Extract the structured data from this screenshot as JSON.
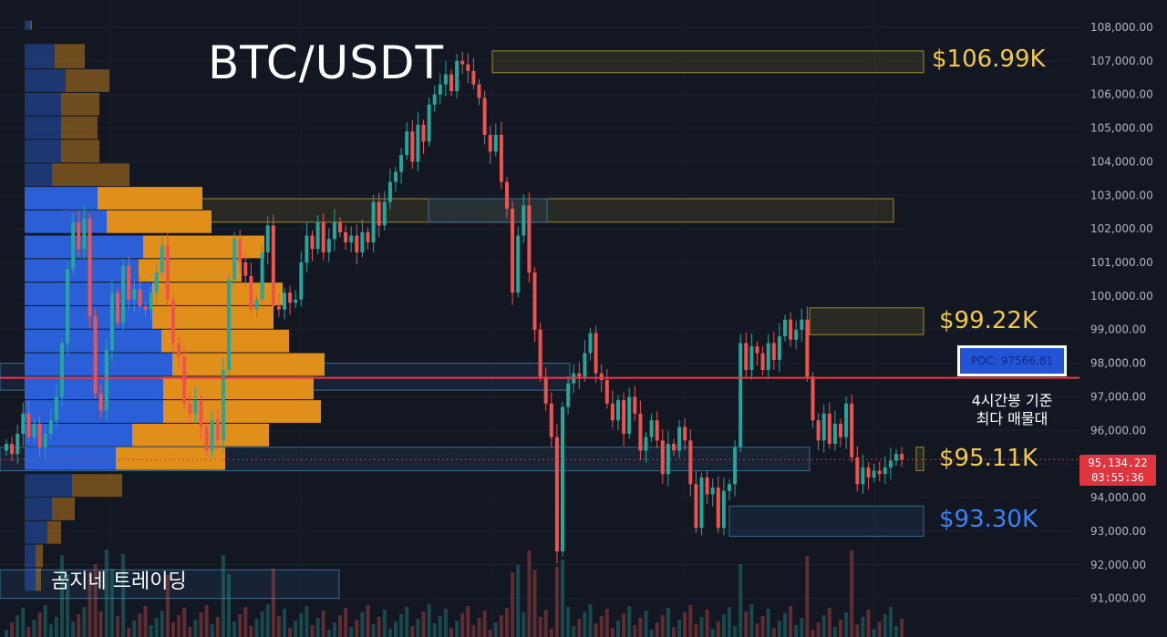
{
  "chart_data": {
    "type": "candlestick",
    "title": "BTC/USDT",
    "watermark": "곰지네 트레이딩",
    "ylim": [
      90000,
      108500
    ],
    "y_ticks": [
      "91,000.00",
      "92,000.00",
      "93,000.00",
      "94,000.00",
      "95,000.00",
      "96,000.00",
      "97,000.00",
      "98,000.00",
      "99,000.00",
      "100,000.00",
      "101,000.00",
      "102,000.00",
      "103,000.00",
      "104,000.00",
      "105,000.00",
      "106,000.00",
      "107,000.00",
      "108,000.00"
    ],
    "y_tick_values": [
      91000,
      92000,
      93000,
      94000,
      95000,
      96000,
      97000,
      98000,
      99000,
      100000,
      101000,
      102000,
      103000,
      104000,
      105000,
      106000,
      107000,
      108000
    ],
    "grid": true,
    "current_price": {
      "value": "95,134.22",
      "countdown": "03:55:36",
      "price": 95134.22
    },
    "poc": {
      "label": "POC: 97566.81",
      "value": 97566.81,
      "note_line1": "4시간봉 기준",
      "note_line2": "최다 매물대"
    },
    "levels": [
      {
        "label": "$106.99K",
        "value": 106990,
        "color": "#f2c94c"
      },
      {
        "label": "$99.22K",
        "value": 99220,
        "color": "#f2c94c"
      },
      {
        "label": "$95.11K",
        "value": 95110,
        "color": "#f2c94c"
      },
      {
        "label": "$93.30K",
        "value": 93300,
        "color": "#3b82f6"
      }
    ],
    "zones": [
      {
        "low": 106650,
        "high": 107300,
        "color": "yellow"
      },
      {
        "low": 102200,
        "high": 102900,
        "color": "yellow"
      },
      {
        "low": 102200,
        "high": 102900,
        "color": "blue"
      },
      {
        "low": 98850,
        "high": 99650,
        "color": "yellow"
      },
      {
        "low": 97200,
        "high": 98000,
        "color": "blue"
      },
      {
        "low": 94800,
        "high": 95500,
        "color": "yellow"
      },
      {
        "low": 94800,
        "high": 95500,
        "color": "blue"
      },
      {
        "low": 92850,
        "high": 93750,
        "color": "blue"
      },
      {
        "low": 91000,
        "high": 91850,
        "color": "blue"
      }
    ],
    "candle_closes": [
      95600,
      95300,
      95900,
      96500,
      95800,
      96200,
      95500,
      95900,
      96300,
      97000,
      98600,
      100800,
      102200,
      101400,
      102300,
      99400,
      97100,
      96600,
      98400,
      100100,
      99200,
      100900,
      99900,
      100200,
      99700,
      99600,
      100100,
      100700,
      101500,
      99900,
      98600,
      98200,
      96800,
      96500,
      96900,
      96100,
      95400,
      96300,
      95700,
      97800,
      100500,
      101700,
      101000,
      100600,
      99600,
      99900,
      101300,
      102100,
      99700,
      99600,
      100100,
      99800,
      99900,
      101000,
      101800,
      101400,
      102200,
      101300,
      101700,
      102200,
      101900,
      101600,
      101800,
      101300,
      101900,
      101600,
      102800,
      102100,
      102800,
      103400,
      103700,
      104200,
      104900,
      104000,
      105100,
      104600,
      105700,
      106000,
      106300,
      106600,
      106100,
      107000,
      106900,
      106700,
      106300,
      105900,
      104800,
      104300,
      104800,
      103400,
      102600,
      100100,
      101800,
      102700,
      100700,
      99000,
      97600,
      96800,
      95800,
      92400,
      96700,
      97400,
      97700,
      97600,
      98300,
      98900,
      97700,
      97500,
      96800,
      96300,
      96900,
      95900,
      97000,
      96500,
      95400,
      95800,
      96300,
      95700,
      94700,
      95600,
      95400,
      96100,
      95700,
      94400,
      93100,
      94600,
      94100,
      94300,
      93100,
      94200,
      94400,
      95500,
      98600,
      97800,
      98500,
      98300,
      97800,
      98600,
      98100,
      98800,
      99300,
      98700,
      99000,
      99300,
      97600,
      96300,
      95700,
      96500,
      95600,
      96200,
      95800,
      96800,
      95200,
      94400,
      94900,
      94600,
      94800,
      94700,
      94900,
      95100,
      95300,
      95134
    ],
    "volume_profile": [
      {
        "price_high": 108200,
        "price_low": 107900,
        "buy": 6,
        "sell": 2
      },
      {
        "price_high": 107500,
        "price_low": 106750,
        "buy": 33,
        "sell": 33
      },
      {
        "price_high": 106750,
        "price_low": 106050,
        "buy": 45,
        "sell": 48
      },
      {
        "price_high": 106050,
        "price_low": 105350,
        "buy": 40,
        "sell": 42
      },
      {
        "price_high": 105350,
        "price_low": 104650,
        "buy": 40,
        "sell": 40
      },
      {
        "price_high": 104650,
        "price_low": 103950,
        "buy": 40,
        "sell": 42
      },
      {
        "price_high": 103950,
        "price_low": 103250,
        "buy": 30,
        "sell": 85
      },
      {
        "price_high": 103250,
        "price_low": 102550,
        "buy": 80,
        "sell": 115
      },
      {
        "price_high": 102550,
        "price_low": 101850,
        "buy": 90,
        "sell": 115
      },
      {
        "price_high": 101800,
        "price_low": 101100,
        "buy": 130,
        "sell": 133
      },
      {
        "price_high": 101100,
        "price_low": 100400,
        "buy": 125,
        "sell": 113
      },
      {
        "price_high": 100400,
        "price_low": 99700,
        "buy": 140,
        "sell": 143
      },
      {
        "price_high": 99700,
        "price_low": 99000,
        "buy": 140,
        "sell": 133
      },
      {
        "price_high": 99000,
        "price_low": 98300,
        "buy": 150,
        "sell": 140
      },
      {
        "price_high": 98300,
        "price_low": 97600,
        "buy": 162,
        "sell": 167
      },
      {
        "price_high": 97600,
        "price_low": 96900,
        "buy": 152,
        "sell": 165
      },
      {
        "price_high": 96900,
        "price_low": 96200,
        "buy": 152,
        "sell": 173
      },
      {
        "price_high": 96200,
        "price_low": 95500,
        "buy": 118,
        "sell": 150
      },
      {
        "price_high": 95500,
        "price_low": 94800,
        "buy": 100,
        "sell": 120
      },
      {
        "price_high": 94700,
        "price_low": 94000,
        "buy": 52,
        "sell": 55
      },
      {
        "price_high": 94000,
        "price_low": 93300,
        "buy": 30,
        "sell": 25
      },
      {
        "price_high": 93300,
        "price_low": 92600,
        "buy": 25,
        "sell": 15
      },
      {
        "price_high": 92600,
        "price_low": 91900,
        "buy": 12,
        "sell": 8
      },
      {
        "price_high": 91900,
        "price_low": 91200,
        "buy": 12,
        "sell": 6
      }
    ],
    "colors": {
      "background": "#131722",
      "up": "#26a69a",
      "down": "#ef5350",
      "profile_buy": "#2a5fd8",
      "profile_sell": "#e08f1a",
      "level_yellow": "#f2c94c",
      "level_blue": "#3b82f6",
      "poc_line": "#f23645",
      "poc_box": "#2454d6",
      "price_tag": "#e0343f"
    }
  }
}
